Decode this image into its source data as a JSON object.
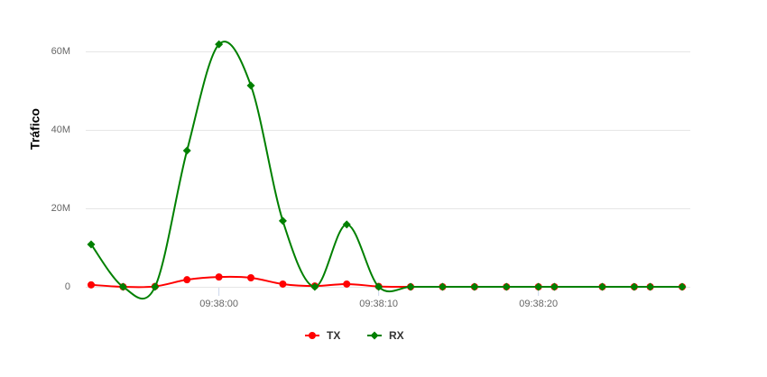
{
  "chart_data": {
    "type": "line",
    "y_label": "Tráfico",
    "x": [
      "09:37:52",
      "09:37:54",
      "09:37:56",
      "09:37:58",
      "09:38:00",
      "09:38:02",
      "09:38:04",
      "09:38:06",
      "09:38:08",
      "09:38:10",
      "09:38:12",
      "09:38:14",
      "09:38:16",
      "09:38:18",
      "09:38:20",
      "09:38:21",
      "09:38:24",
      "09:38:26",
      "09:38:27",
      "09:38:29"
    ],
    "series": [
      {
        "name": "TX",
        "color": "#ff0000",
        "marker": "circle",
        "values": [
          500000,
          0,
          100000,
          1800000,
          2500000,
          2300000,
          700000,
          200000,
          700000,
          100000,
          0,
          0,
          0,
          0,
          0,
          0,
          0,
          0,
          0,
          0
        ]
      },
      {
        "name": "RX",
        "color": "#008000",
        "marker": "diamond",
        "values": [
          10800000,
          0,
          0,
          34700000,
          61800000,
          51300000,
          16800000,
          0,
          15900000,
          0,
          0,
          0,
          0,
          0,
          0,
          0,
          0,
          0,
          0,
          0
        ]
      }
    ],
    "xlim": [
      "09:37:52",
      "09:38:29"
    ],
    "xticks": [
      "09:38:00",
      "09:38:10",
      "09:38:20"
    ],
    "ylim": [
      0,
      60000000
    ],
    "yticks": [
      0,
      {
        "value": 20000000,
        "label": "20M"
      },
      {
        "value": 40000000,
        "label": "40M"
      },
      {
        "value": 60000000,
        "label": "60M"
      }
    ],
    "grid": true,
    "legend": "bottom"
  }
}
